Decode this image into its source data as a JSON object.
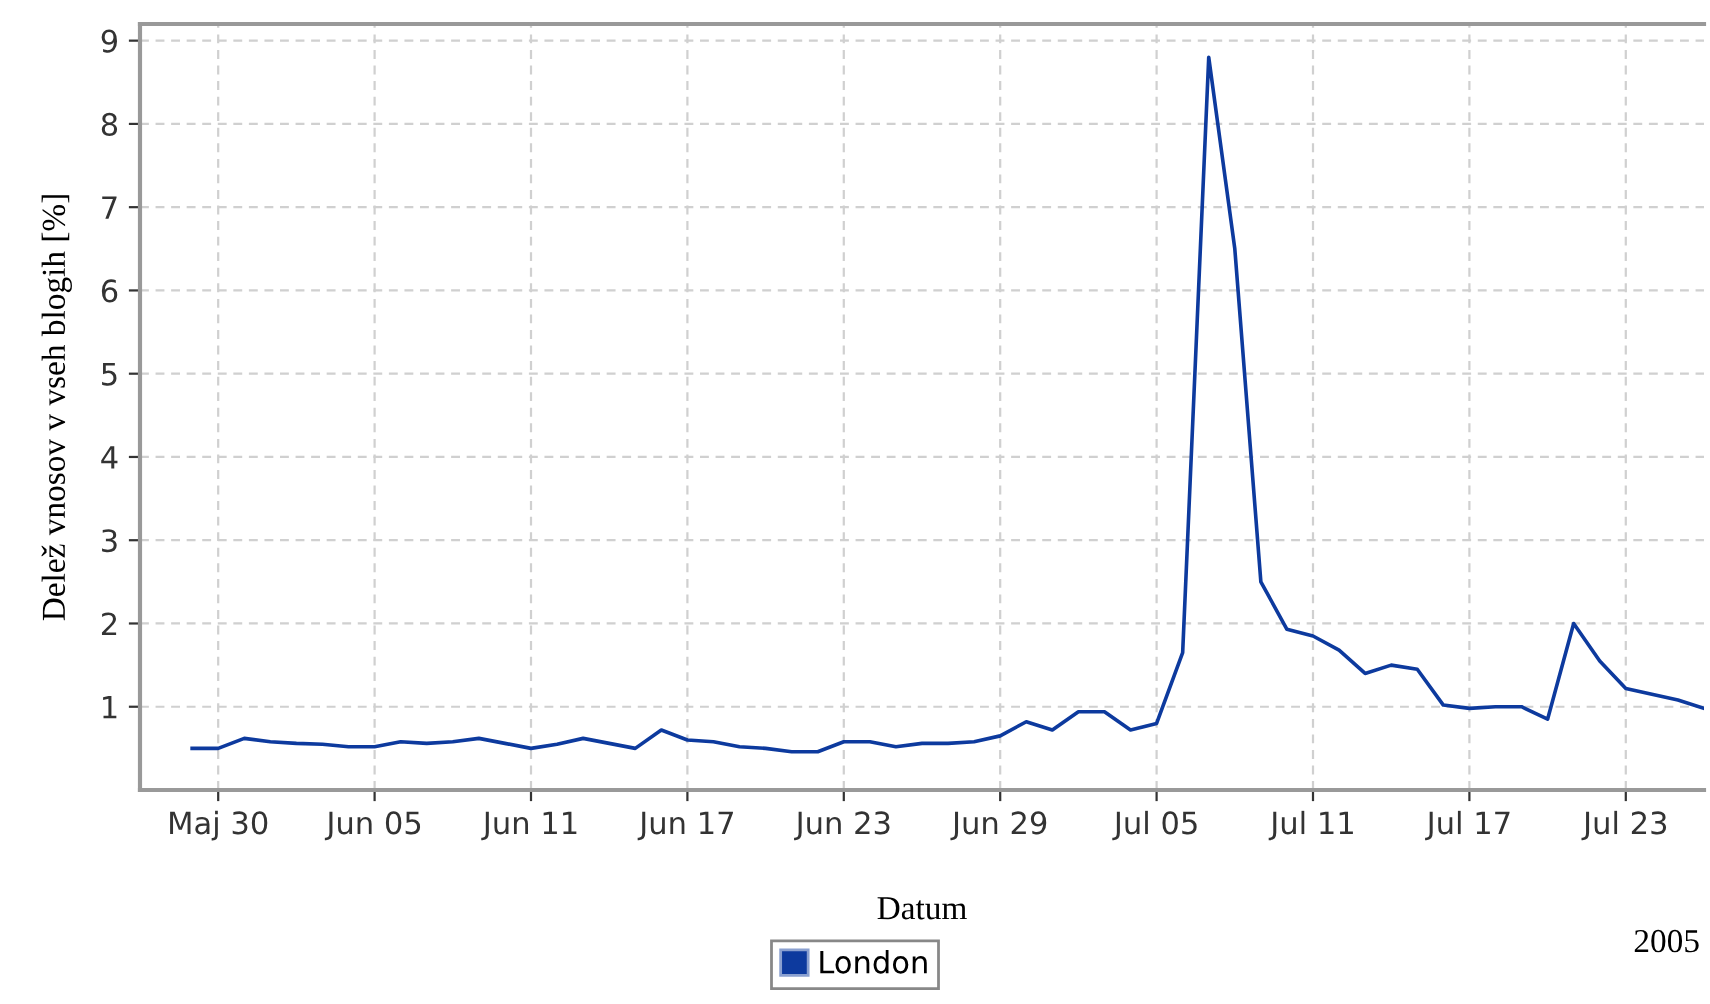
{
  "chart_data": {
    "type": "line",
    "xlabel": "Datum",
    "ylabel": "Delež vnosov v vseh blogih [%]",
    "annotations": [
      "2005"
    ],
    "x": [
      "2005-05-29",
      "2005-05-30",
      "2005-05-31",
      "2005-06-01",
      "2005-06-02",
      "2005-06-03",
      "2005-06-04",
      "2005-06-05",
      "2005-06-06",
      "2005-06-07",
      "2005-06-08",
      "2005-06-09",
      "2005-06-10",
      "2005-06-11",
      "2005-06-12",
      "2005-06-13",
      "2005-06-14",
      "2005-06-15",
      "2005-06-16",
      "2005-06-17",
      "2005-06-18",
      "2005-06-19",
      "2005-06-20",
      "2005-06-21",
      "2005-06-22",
      "2005-06-23",
      "2005-06-24",
      "2005-06-25",
      "2005-06-26",
      "2005-06-27",
      "2005-06-28",
      "2005-06-29",
      "2005-06-30",
      "2005-07-01",
      "2005-07-02",
      "2005-07-03",
      "2005-07-04",
      "2005-07-05",
      "2005-07-06",
      "2005-07-07",
      "2005-07-08",
      "2005-07-09",
      "2005-07-10",
      "2005-07-11",
      "2005-07-12",
      "2005-07-13",
      "2005-07-14",
      "2005-07-15",
      "2005-07-16",
      "2005-07-17",
      "2005-07-18",
      "2005-07-19",
      "2005-07-20",
      "2005-07-21",
      "2005-07-22",
      "2005-07-23",
      "2005-07-24",
      "2005-07-25",
      "2005-07-26"
    ],
    "series": [
      {
        "name": "London",
        "color": "#0d3a9e",
        "values": [
          0.5,
          0.5,
          0.62,
          0.58,
          0.56,
          0.55,
          0.52,
          0.52,
          0.58,
          0.56,
          0.58,
          0.62,
          0.56,
          0.5,
          0.55,
          0.62,
          0.56,
          0.5,
          0.72,
          0.6,
          0.58,
          0.52,
          0.5,
          0.46,
          0.46,
          0.58,
          0.58,
          0.52,
          0.56,
          0.56,
          0.58,
          0.65,
          0.82,
          0.72,
          0.94,
          0.94,
          0.72,
          0.8,
          1.65,
          8.8,
          6.5,
          2.5,
          1.93,
          1.85,
          1.68,
          1.4,
          1.5,
          1.45,
          1.02,
          0.98,
          1.0,
          1.0,
          0.85,
          2.0,
          1.55,
          1.22,
          1.15,
          1.08,
          0.98
        ]
      }
    ],
    "xlim": [
      "2005-05-27",
      "2005-07-26"
    ],
    "xticks": [
      {
        "value": "2005-05-30",
        "label": "Maj 30"
      },
      {
        "value": "2005-06-05",
        "label": "Jun 05"
      },
      {
        "value": "2005-06-11",
        "label": "Jun 11"
      },
      {
        "value": "2005-06-17",
        "label": "Jun 17"
      },
      {
        "value": "2005-06-23",
        "label": "Jun 23"
      },
      {
        "value": "2005-06-29",
        "label": "Jun 29"
      },
      {
        "value": "2005-07-05",
        "label": "Jul 05"
      },
      {
        "value": "2005-07-11",
        "label": "Jul 11"
      },
      {
        "value": "2005-07-17",
        "label": "Jul 17"
      },
      {
        "value": "2005-07-23",
        "label": "Jul 23"
      }
    ],
    "ylim": [
      0,
      9.2
    ],
    "yticks": [
      1,
      2,
      3,
      4,
      5,
      6,
      7,
      8,
      9
    ],
    "grid": true,
    "legend": "bottom",
    "marker": "none",
    "line_style": "solid"
  }
}
